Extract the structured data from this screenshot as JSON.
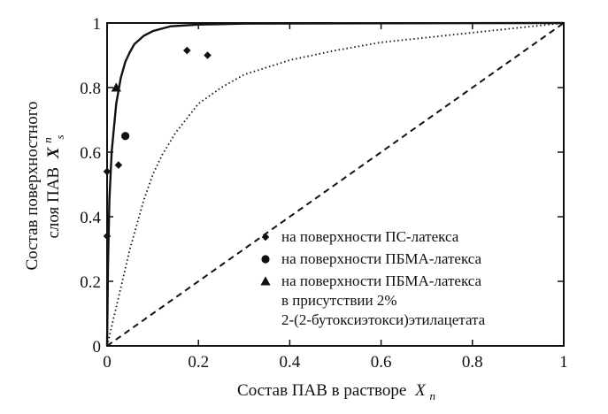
{
  "chart_data": {
    "type": "scatter",
    "xlabel": "Состав ПАВ в растворе",
    "xlabel_symbol": "X",
    "xlabel_sub": "n",
    "ylabel_line1": "Состав поверхностного",
    "ylabel_line2": "слоя ПАВ",
    "ylabel_symbol": "X",
    "ylabel_sup": "n",
    "ylabel_sub": "s",
    "xlim": [
      0,
      1
    ],
    "ylim": [
      0,
      1
    ],
    "x_ticks": [
      {
        "value": 0,
        "label": "0"
      },
      {
        "value": 0.2,
        "label": "0.2"
      },
      {
        "value": 0.4,
        "label": "0.4"
      },
      {
        "value": 0.6,
        "label": "0.6"
      },
      {
        "value": 0.8,
        "label": "0.8"
      },
      {
        "value": 1,
        "label": "1"
      }
    ],
    "y_ticks": [
      {
        "value": 0,
        "label": "0"
      },
      {
        "value": 0.2,
        "label": "0.2"
      },
      {
        "value": 0.4,
        "label": "0.4"
      },
      {
        "value": 0.6,
        "label": "0.6"
      },
      {
        "value": 0.8,
        "label": "0.8"
      },
      {
        "value": 1,
        "label": "1"
      }
    ],
    "grid": false,
    "legend_position": "bottom-right",
    "series": [
      {
        "name": "на поверхности ПС-латекса",
        "marker": "diamond",
        "points": [
          [
            0.0,
            0.34
          ],
          [
            0.0,
            0.54
          ],
          [
            0.025,
            0.56
          ],
          [
            0.175,
            0.915
          ],
          [
            0.22,
            0.9
          ]
        ]
      },
      {
        "name": "на поверхности ПБМА-латекса",
        "marker": "circle",
        "points": [
          [
            0.04,
            0.65
          ]
        ]
      },
      {
        "name": "на поверхности ПБМА-латекса в присутствии 2% 2-(2-бутоксиэтокси)этилацетата",
        "name_lines": [
          "на поверхности ПБМА-латекса",
          "в присутствии 2%",
          "2-(2-бутоксиэтокси)этилацетата"
        ],
        "marker": "triangle",
        "points": [
          [
            0.02,
            0.8
          ]
        ]
      }
    ],
    "lines": [
      {
        "style": "solid",
        "points": [
          [
            0,
            0
          ],
          [
            0.002,
            0.25
          ],
          [
            0.005,
            0.45
          ],
          [
            0.01,
            0.6
          ],
          [
            0.02,
            0.75
          ],
          [
            0.03,
            0.83
          ],
          [
            0.04,
            0.88
          ],
          [
            0.05,
            0.91
          ],
          [
            0.06,
            0.935
          ],
          [
            0.08,
            0.96
          ],
          [
            0.1,
            0.975
          ],
          [
            0.14,
            0.99
          ],
          [
            0.2,
            0.995
          ],
          [
            0.3,
            0.998
          ],
          [
            0.5,
            0.999
          ],
          [
            1.0,
            1.0
          ]
        ]
      },
      {
        "style": "dotted",
        "points": [
          [
            0,
            0
          ],
          [
            0.02,
            0.12
          ],
          [
            0.05,
            0.3
          ],
          [
            0.08,
            0.45
          ],
          [
            0.1,
            0.53
          ],
          [
            0.12,
            0.59
          ],
          [
            0.15,
            0.66
          ],
          [
            0.2,
            0.75
          ],
          [
            0.25,
            0.8
          ],
          [
            0.3,
            0.84
          ],
          [
            0.4,
            0.885
          ],
          [
            0.5,
            0.915
          ],
          [
            0.6,
            0.94
          ],
          [
            0.7,
            0.955
          ],
          [
            0.8,
            0.97
          ],
          [
            0.9,
            0.985
          ],
          [
            1.0,
            1.0
          ]
        ]
      },
      {
        "style": "dashed",
        "points": [
          [
            0,
            0
          ],
          [
            1,
            1
          ]
        ]
      }
    ]
  }
}
